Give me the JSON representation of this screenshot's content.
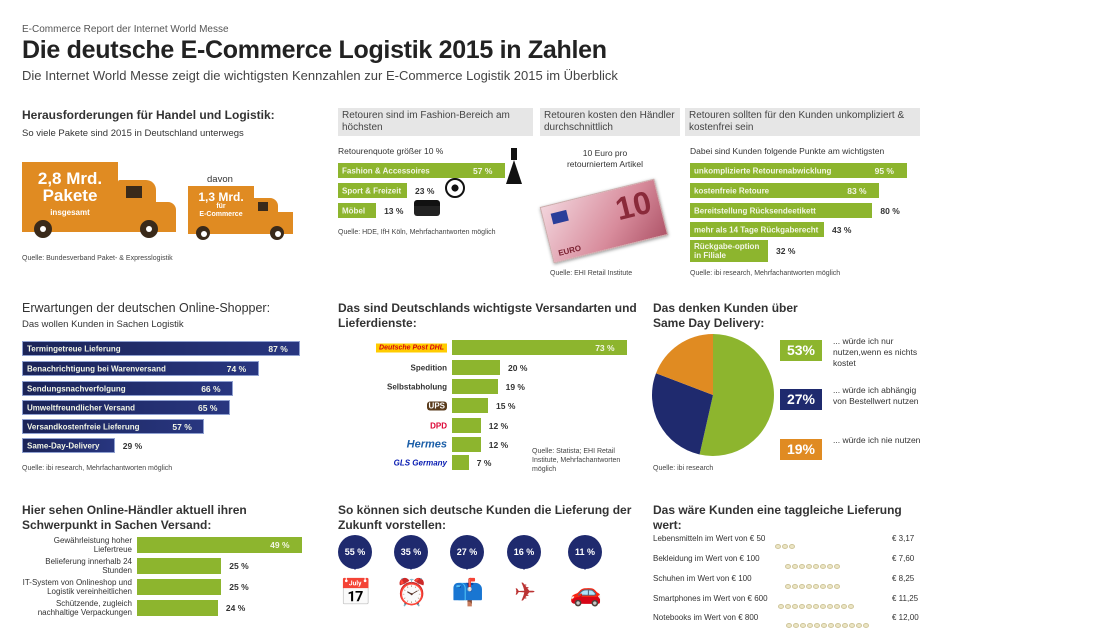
{
  "header": {
    "kicker": "E-Commerce Report der Internet World Messe",
    "title": "Die deutsche E-Commerce Logistik 2015 in Zahlen",
    "subtitle": "Die Internet World Messe zeigt die wichtigsten Kennzahlen zur E-Commerce Logistik 2015 im Überblick"
  },
  "parcels": {
    "title": "Herausforderungen für Handel und Logistik:",
    "subtitle": "So viele Pakete sind 2015 in Deutschland unterwegs",
    "total_value": "2,8 Mrd.",
    "total_unit": "Pakete",
    "total_note": "insgesamt",
    "davon": "davon",
    "ecom_value": "1,3 Mrd.",
    "ecom_note1": "für",
    "ecom_note2": "E-Commerce",
    "source": "Quelle: Bundesverband Paket- & Expresslogistik",
    "truck_color": "#e08b22"
  },
  "euro": {
    "title": "Retouren kosten den Händler durchschnittlich",
    "text1": "10 Euro pro",
    "text2": "retourniertem Artikel",
    "note_value": "10",
    "note_label": "EURO",
    "source": "Quelle: EHI Retail Institute"
  },
  "colors": {
    "green": "#8db52e",
    "navy": "#1f2a6e",
    "orange": "#e08b22",
    "band": "#e6e6e6"
  },
  "chart_data": [
    {
      "type": "bar",
      "orientation": "horizontal",
      "title": "Retouren sind im Fashion-Bereich am höchsten",
      "subtitle": "Retourenquote größer 10 %",
      "categories": [
        "Fashion & Accessoires",
        "Sport & Freizeit",
        "Möbel"
      ],
      "values": [
        57,
        23,
        13
      ],
      "unit": "%",
      "icons": [
        "dress-icon",
        "football-icon",
        "sofa-icon"
      ],
      "source": "Quelle: HDE, IfH Köln, Mehrfachantworten möglich"
    },
    {
      "type": "bar",
      "orientation": "horizontal",
      "title": "Retouren sollten für den Kunden unkompliziert & kostenfrei sein",
      "subtitle": "Dabei sind Kunden folgende Punkte am wichtigsten",
      "categories": [
        "unkomplizierte Retourenabwicklung",
        "kostenfreie Retoure",
        "Bereitstellung Rücksendeetikett",
        "mehr als 14 Tage Rückgaberecht",
        "Rückgabe-option in Filiale"
      ],
      "values": [
        95,
        83,
        80,
        43,
        32
      ],
      "unit": "%",
      "source": "Quelle: ibi research, Mehrfachantworten möglich"
    },
    {
      "type": "bar",
      "orientation": "horizontal",
      "title": "Erwartungen der deutschen Online-Shopper:",
      "subtitle": "Das wollen Kunden in Sachen Logistik",
      "categories": [
        "Termingetreue Lieferung",
        "Benachrichtigung bei Warenversand",
        "Sendungsnachverfolgung",
        "Umweltfreundlicher Versand",
        "Versandkostenfreie Lieferung",
        "Same-Day-Delivery"
      ],
      "values": [
        87,
        74,
        66,
        65,
        57,
        29
      ],
      "unit": "%",
      "source": "Quelle: ibi research, Mehrfachantworten möglich"
    },
    {
      "type": "bar",
      "orientation": "horizontal",
      "title": "Das sind Deutschlands wichtigste Versandarten und Lieferdienste:",
      "categories": [
        "Deutsche Post DHL",
        "Spedition",
        "Selbstabholung",
        "UPS",
        "DPD",
        "Hermes",
        "GLS Germany"
      ],
      "values": [
        73,
        20,
        19,
        15,
        12,
        12,
        7
      ],
      "unit": "%",
      "source": "Quelle: Statista; EHI Retail Institute, Mehrfachantworten möglich"
    },
    {
      "type": "pie",
      "title": "Das denken Kunden über Same Day Delivery:",
      "categories": [
        "... würde ich nur nutzen,wenn es nichts kostet",
        "... würde ich abhängig von Bestellwert nutzen",
        "... würde ich nie nutzen"
      ],
      "values": [
        53,
        27,
        19
      ],
      "unit": "%",
      "colors": [
        "#8db52e",
        "#1f2a6e",
        "#e08b22"
      ],
      "source": "Quelle: ibi research"
    },
    {
      "type": "bar",
      "orientation": "horizontal",
      "title": "Hier sehen Online-Händler aktuell ihren Schwerpunkt in Sachen Versand:",
      "categories": [
        "Gewährleistung hoher Liefertreue",
        "Belieferung innerhalb 24 Stunden",
        "IT-System von Onlineshop und Logistik vereinheitlichen",
        "Schützende, zugleich nachhaltige Verpackungen"
      ],
      "values": [
        49,
        25,
        25,
        24
      ],
      "unit": "%"
    },
    {
      "type": "bar",
      "title": "So können sich deutsche Kunden die Lieferung der Zukunft vorstellen:",
      "values": [
        55,
        35,
        27,
        16,
        11
      ],
      "unit": "%",
      "icons": [
        "calendar-icon",
        "alarm-clock-icon",
        "mailbox-icon",
        "drone-icon",
        "car-trunk-icon"
      ]
    },
    {
      "type": "bar",
      "orientation": "horizontal",
      "title": "Das wäre Kunden eine taggleiche Lieferung wert:",
      "categories": [
        "Lebensmitteln im Wert von € 50",
        "Bekleidung im Wert von € 100",
        "Schuhen im Wert von € 100",
        "Smartphones im Wert von € 600",
        "Notebooks im Wert von € 800"
      ],
      "values": [
        3.17,
        7.6,
        8.25,
        11.25,
        12.0
      ],
      "unit": "€"
    }
  ]
}
